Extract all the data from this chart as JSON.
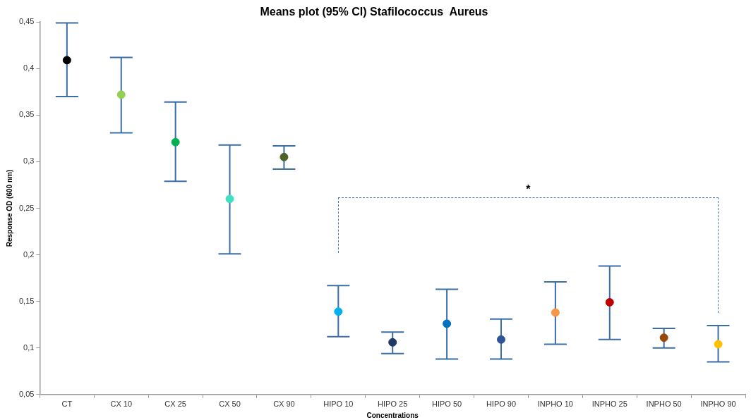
{
  "chart_data": {
    "type": "scatter",
    "title": "Means plot (95% CI) Stafilococcus  Aureus",
    "xlabel": "Concentrations",
    "ylabel": "Response OD (600 nm)",
    "categories": [
      "CT",
      "CX 10",
      "CX 25",
      "CX 50",
      "CX 90",
      "HIPO 10",
      "HIPO 25",
      "HIPO 50",
      "HIPO 90",
      "INPHO 10",
      "INPHO 25",
      "INPHO 50",
      "INPHO 90"
    ],
    "values": [
      0.409,
      0.372,
      0.321,
      0.26,
      0.305,
      0.139,
      0.106,
      0.126,
      0.109,
      0.138,
      0.149,
      0.111,
      0.104
    ],
    "errors": [
      [
        0.37,
        0.449
      ],
      [
        0.331,
        0.412
      ],
      [
        0.279,
        0.364
      ],
      [
        0.201,
        0.318
      ],
      [
        0.292,
        0.317
      ],
      [
        0.112,
        0.167
      ],
      [
        0.094,
        0.117
      ],
      [
        0.088,
        0.163
      ],
      [
        0.088,
        0.131
      ],
      [
        0.104,
        0.171
      ],
      [
        0.109,
        0.188
      ],
      [
        0.1,
        0.121
      ],
      [
        0.085,
        0.124
      ]
    ],
    "colors": [
      "#000000",
      "#92d050",
      "#00b050",
      "#40e0c0",
      "#4f6228",
      "#00b0f0",
      "#1f3864",
      "#0070c0",
      "#2f5597",
      "#f79646",
      "#c00000",
      "#984807",
      "#ffc000"
    ],
    "ylim": [
      0.05,
      0.45
    ],
    "yticks": [
      {
        "value": 0.05,
        "label": "0,05"
      },
      {
        "value": 0.1,
        "label": "0,1"
      },
      {
        "value": 0.15,
        "label": "0,15"
      },
      {
        "value": 0.2,
        "label": "0,2"
      },
      {
        "value": 0.25,
        "label": "0,25"
      },
      {
        "value": 0.3,
        "label": "0,3"
      },
      {
        "value": 0.35,
        "label": "0,35"
      },
      {
        "value": 0.4,
        "label": "0,4"
      },
      {
        "value": 0.45,
        "label": "0,45"
      }
    ],
    "annotations": [
      "*"
    ],
    "grid": false,
    "legend": false,
    "marker": "circle"
  }
}
